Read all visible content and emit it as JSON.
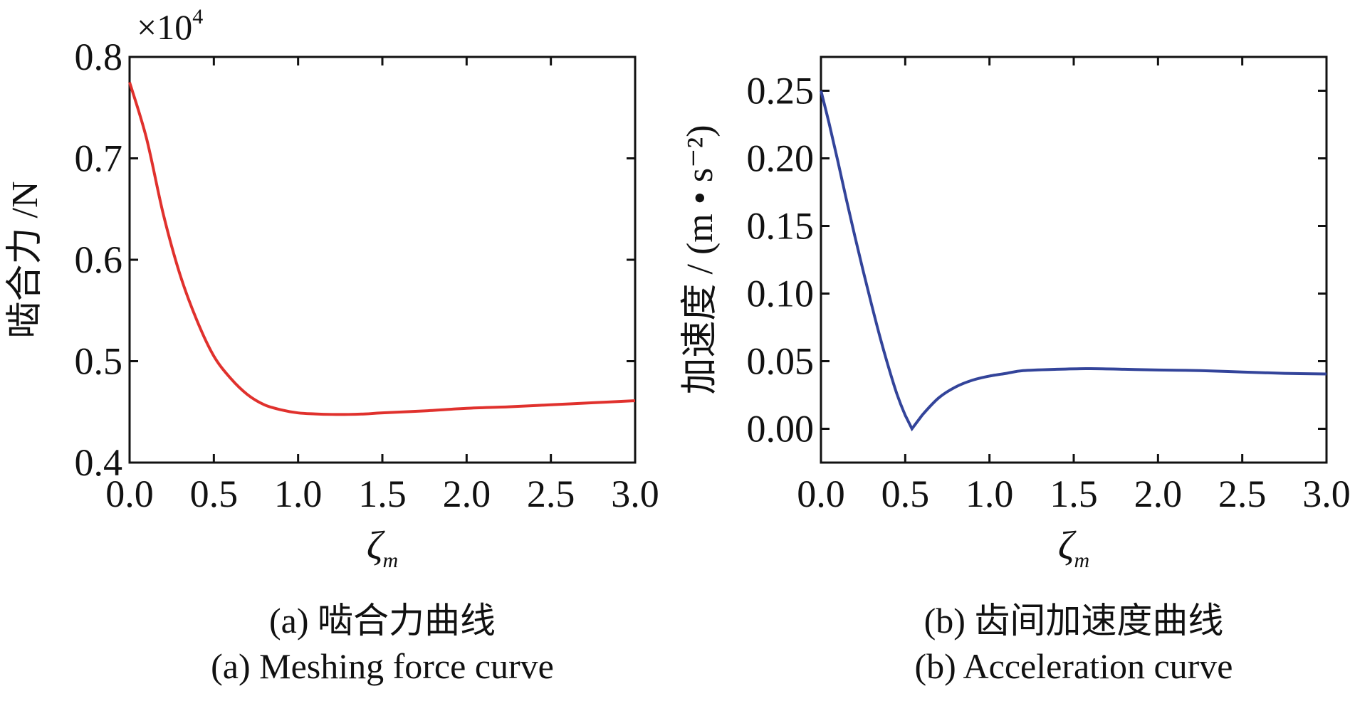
{
  "chart_data": [
    {
      "type": "line",
      "panel": "a",
      "multiplier_label": "×10",
      "multiplier_exponent": "4",
      "xlabel_symbol": "ζ",
      "xlabel_subscript": "m",
      "ylabel": "啮合力 /N",
      "xlim": [
        0,
        3
      ],
      "ylim": [
        0.4,
        0.8
      ],
      "xticks": [
        "0.0",
        "0.5",
        "1.0",
        "1.5",
        "2.0",
        "2.5",
        "3.0"
      ],
      "yticks": [
        "0.4",
        "0.5",
        "0.6",
        "0.7",
        "0.8"
      ],
      "grid": false,
      "series": [
        {
          "color": "#e0312d",
          "x": [
            0.0,
            0.1,
            0.2,
            0.3,
            0.4,
            0.5,
            0.6,
            0.7,
            0.8,
            0.9,
            1.0,
            1.1,
            1.2,
            1.3,
            1.4,
            1.5,
            1.75,
            2.0,
            2.25,
            2.5,
            2.75,
            3.0
          ],
          "y": [
            0.775,
            0.72,
            0.645,
            0.585,
            0.54,
            0.505,
            0.483,
            0.467,
            0.457,
            0.452,
            0.449,
            0.448,
            0.4475,
            0.4475,
            0.448,
            0.449,
            0.451,
            0.4535,
            0.455,
            0.457,
            0.459,
            0.461
          ]
        }
      ],
      "caption_cn": "(a) 啮合力曲线",
      "caption_en": "(a) Meshing force curve"
    },
    {
      "type": "line",
      "panel": "b",
      "xlabel_symbol": "ζ",
      "xlabel_subscript": "m",
      "ylabel": "加速度 / (m • s⁻²)",
      "xlim": [
        0,
        3
      ],
      "ylim": [
        -0.025,
        0.275
      ],
      "xticks": [
        "0.0",
        "0.5",
        "1.0",
        "1.5",
        "2.0",
        "2.5",
        "3.0"
      ],
      "yticks": [
        "0.00",
        "0.05",
        "0.10",
        "0.15",
        "0.20",
        "0.25"
      ],
      "grid": false,
      "series": [
        {
          "color": "#33449a",
          "x": [
            0.0,
            0.05,
            0.1,
            0.15,
            0.2,
            0.25,
            0.3,
            0.35,
            0.4,
            0.45,
            0.5,
            0.54,
            0.6,
            0.7,
            0.8,
            0.9,
            1.0,
            1.1,
            1.2,
            1.4,
            1.6,
            1.8,
            2.0,
            2.25,
            2.5,
            2.75,
            3.0
          ],
          "y": [
            0.25,
            0.225,
            0.198,
            0.17,
            0.143,
            0.117,
            0.092,
            0.068,
            0.046,
            0.026,
            0.01,
            0.0,
            0.01,
            0.023,
            0.031,
            0.036,
            0.039,
            0.041,
            0.043,
            0.044,
            0.0445,
            0.044,
            0.0435,
            0.043,
            0.042,
            0.041,
            0.0405
          ]
        }
      ],
      "caption_cn": "(b) 齿间加速度曲线",
      "caption_en": "(b) Acceleration curve"
    }
  ]
}
